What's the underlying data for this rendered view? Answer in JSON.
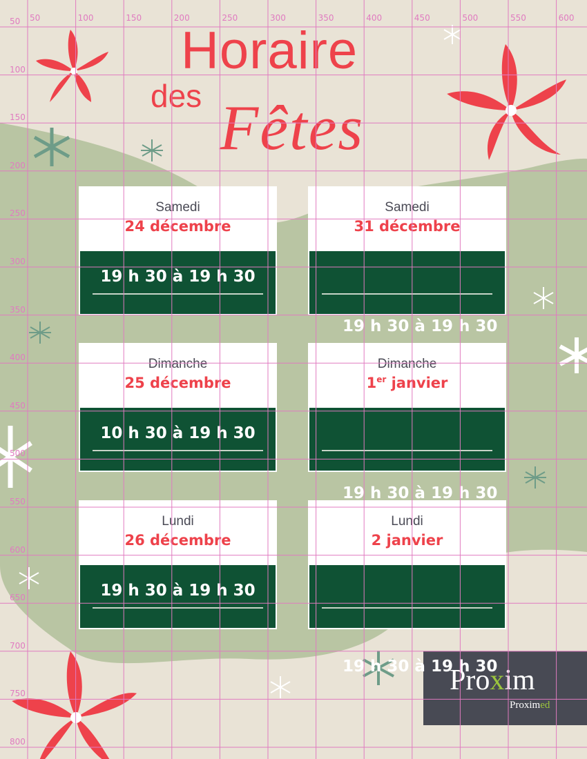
{
  "title": {
    "line1": "Horaire",
    "line2a": "des",
    "line2b": "Fêtes"
  },
  "cards": [
    {
      "day": "Samedi",
      "date": "24 décembre",
      "date_sup": "",
      "time": "19 h 30 à 19 h 30"
    },
    {
      "day": "Samedi",
      "date": "31 décembre",
      "date_sup": "",
      "time": ""
    },
    {
      "day": "Dimanche",
      "date": "25 décembre",
      "date_sup": "",
      "time": "10 h 30 à 19 h 30"
    },
    {
      "day": "Dimanche",
      "date_num": "1",
      "date_sup": "er",
      "date": " janvier",
      "time": ""
    },
    {
      "day": "Lundi",
      "date": "26 décembre",
      "date_sup": "",
      "time": "19 h 30 à 19 h 30"
    },
    {
      "day": "Lundi",
      "date": "2 janvier",
      "date_sup": "",
      "time": ""
    }
  ],
  "overflow_times": [
    "19 h 30 à 19 h 30",
    "19 h 30 à 19 h 30",
    "19 h 30 à 19 h 30"
  ],
  "logo": {
    "brand": "Proxim",
    "brand_pre": "Pro",
    "brand_x": "x",
    "brand_post": "im",
    "sub_pre": "Proxim",
    "sub_post": "ed"
  },
  "ruler": {
    "x_labels": [
      "50",
      "100",
      "150",
      "200",
      "250",
      "300",
      "350",
      "400",
      "450",
      "500",
      "550",
      "600"
    ],
    "y_labels": [
      "50",
      "100",
      "150",
      "200",
      "250",
      "300",
      "350",
      "400",
      "450",
      "500",
      "550",
      "600",
      "650",
      "700",
      "750",
      "800"
    ]
  },
  "colors": {
    "red": "#EE424B",
    "dark_green": "#0F5234",
    "sage": "#B9C5A3",
    "beige": "#E9E3D6",
    "grid": "#E07BC0",
    "logo_bg": "#484A54",
    "logo_green": "#9BC53D"
  }
}
